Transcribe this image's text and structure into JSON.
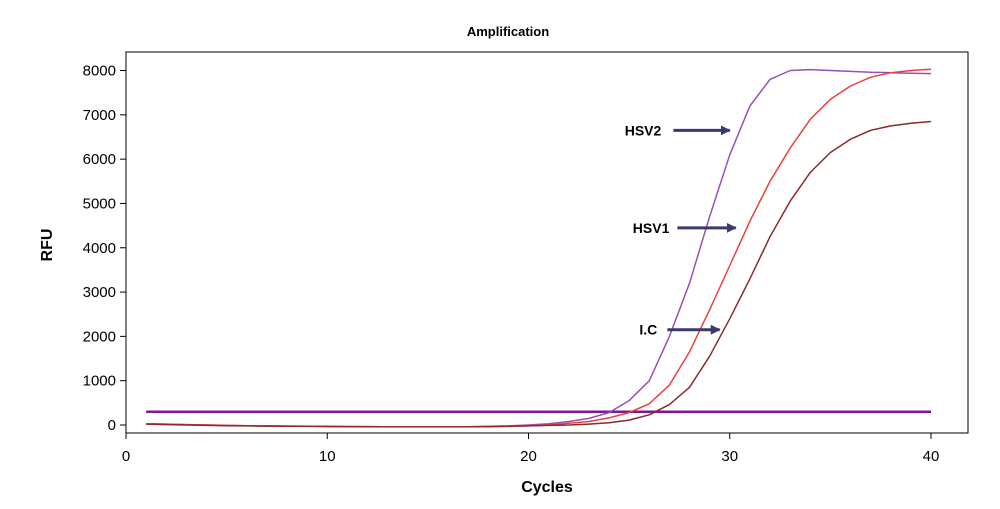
{
  "chart_data": {
    "type": "line",
    "title": "Amplification",
    "xlabel": "Cycles",
    "ylabel": "RFU",
    "xlim": [
      0,
      42
    ],
    "ylim": [
      -200,
      8300
    ],
    "xticks": [
      0,
      10,
      20,
      30,
      40
    ],
    "yticks": [
      0,
      1000,
      2000,
      3000,
      4000,
      5000,
      6000,
      7000,
      8000
    ],
    "grid": false,
    "legend": "none",
    "threshold": {
      "value": 300,
      "x_range": [
        1,
        40
      ],
      "color": "#7b1a8c"
    },
    "series": [
      {
        "color": "#9a4fb5",
        "x": [
          1,
          2,
          3,
          4,
          5,
          6,
          7,
          8,
          9,
          10,
          11,
          12,
          13,
          14,
          15,
          16,
          17,
          18,
          19,
          20,
          21,
          22,
          23,
          24,
          25,
          26,
          27,
          28,
          29,
          30,
          31,
          32,
          33,
          34,
          35,
          36,
          37,
          38,
          39,
          40
        ],
        "y": [
          30,
          20,
          10,
          0,
          -10,
          -15,
          -20,
          -25,
          -30,
          -30,
          -35,
          -35,
          -40,
          -40,
          -40,
          -40,
          -40,
          -30,
          -20,
          0,
          30,
          80,
          150,
          280,
          550,
          1000,
          2000,
          3200,
          4700,
          6100,
          7200,
          7800,
          8000,
          8020,
          8000,
          7980,
          7960,
          7950,
          7940,
          7930
        ]
      },
      {
        "color": "#e8423e",
        "x": [
          1,
          2,
          3,
          4,
          5,
          6,
          7,
          8,
          9,
          10,
          11,
          12,
          13,
          14,
          15,
          16,
          17,
          18,
          19,
          20,
          21,
          22,
          23,
          24,
          25,
          26,
          27,
          28,
          29,
          30,
          31,
          32,
          33,
          34,
          35,
          36,
          37,
          38,
          39,
          40
        ],
        "y": [
          30,
          20,
          10,
          0,
          -10,
          -15,
          -20,
          -25,
          -30,
          -30,
          -35,
          -35,
          -40,
          -40,
          -40,
          -40,
          -40,
          -35,
          -30,
          -20,
          0,
          40,
          80,
          160,
          280,
          480,
          900,
          1650,
          2600,
          3600,
          4600,
          5500,
          6250,
          6900,
          7350,
          7650,
          7850,
          7950,
          8000,
          8030
        ]
      },
      {
        "color": "#8b2a2a",
        "x": [
          1,
          2,
          3,
          4,
          5,
          6,
          7,
          8,
          9,
          10,
          11,
          12,
          13,
          14,
          15,
          16,
          17,
          18,
          19,
          20,
          21,
          22,
          23,
          24,
          25,
          26,
          27,
          28,
          29,
          30,
          31,
          32,
          33,
          34,
          35,
          36,
          37,
          38,
          39,
          40
        ],
        "y": [
          20,
          10,
          0,
          -10,
          -15,
          -20,
          -25,
          -30,
          -30,
          -35,
          -35,
          -40,
          -40,
          -40,
          -40,
          -40,
          -40,
          -40,
          -30,
          -20,
          -10,
          0,
          20,
          50,
          110,
          230,
          460,
          850,
          1550,
          2400,
          3300,
          4250,
          5050,
          5700,
          6150,
          6450,
          6650,
          6750,
          6810,
          6850
        ]
      }
    ],
    "annotations": [
      {
        "text": "HSV2",
        "text_x": 26.6,
        "text_y": 6650,
        "arrow_from": [
          27.2,
          6650
        ],
        "arrow_to": [
          30.0,
          6650
        ]
      },
      {
        "text": "HSV1",
        "text_x": 27.0,
        "text_y": 4450,
        "arrow_from": [
          27.4,
          4450
        ],
        "arrow_to": [
          30.3,
          4450
        ]
      },
      {
        "text": "I.C",
        "text_x": 26.4,
        "text_y": 2150,
        "arrow_from": [
          26.9,
          2150
        ],
        "arrow_to": [
          29.5,
          2150
        ]
      }
    ],
    "annotation_arrow_color": "#3a3a6e"
  }
}
